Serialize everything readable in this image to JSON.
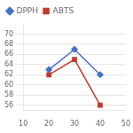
{
  "chart_data": {
    "type": "line",
    "x": [
      20,
      30,
      40
    ],
    "series": [
      {
        "name": "DPPH",
        "color": "#4472c4",
        "marker": "diamond",
        "values": [
          63,
          67,
          62
        ]
      },
      {
        "name": "ABTS",
        "color": "#c0392b",
        "marker": "square",
        "values": [
          62,
          65,
          56
        ]
      }
    ],
    "xlim": [
      10,
      50
    ],
    "xticks": [
      10,
      20,
      30,
      40,
      50
    ],
    "ylim": [
      55,
      72
    ],
    "yticks": [
      56,
      58,
      60,
      62,
      64,
      66,
      68,
      70
    ],
    "grid": "y",
    "legend": "upper left"
  }
}
